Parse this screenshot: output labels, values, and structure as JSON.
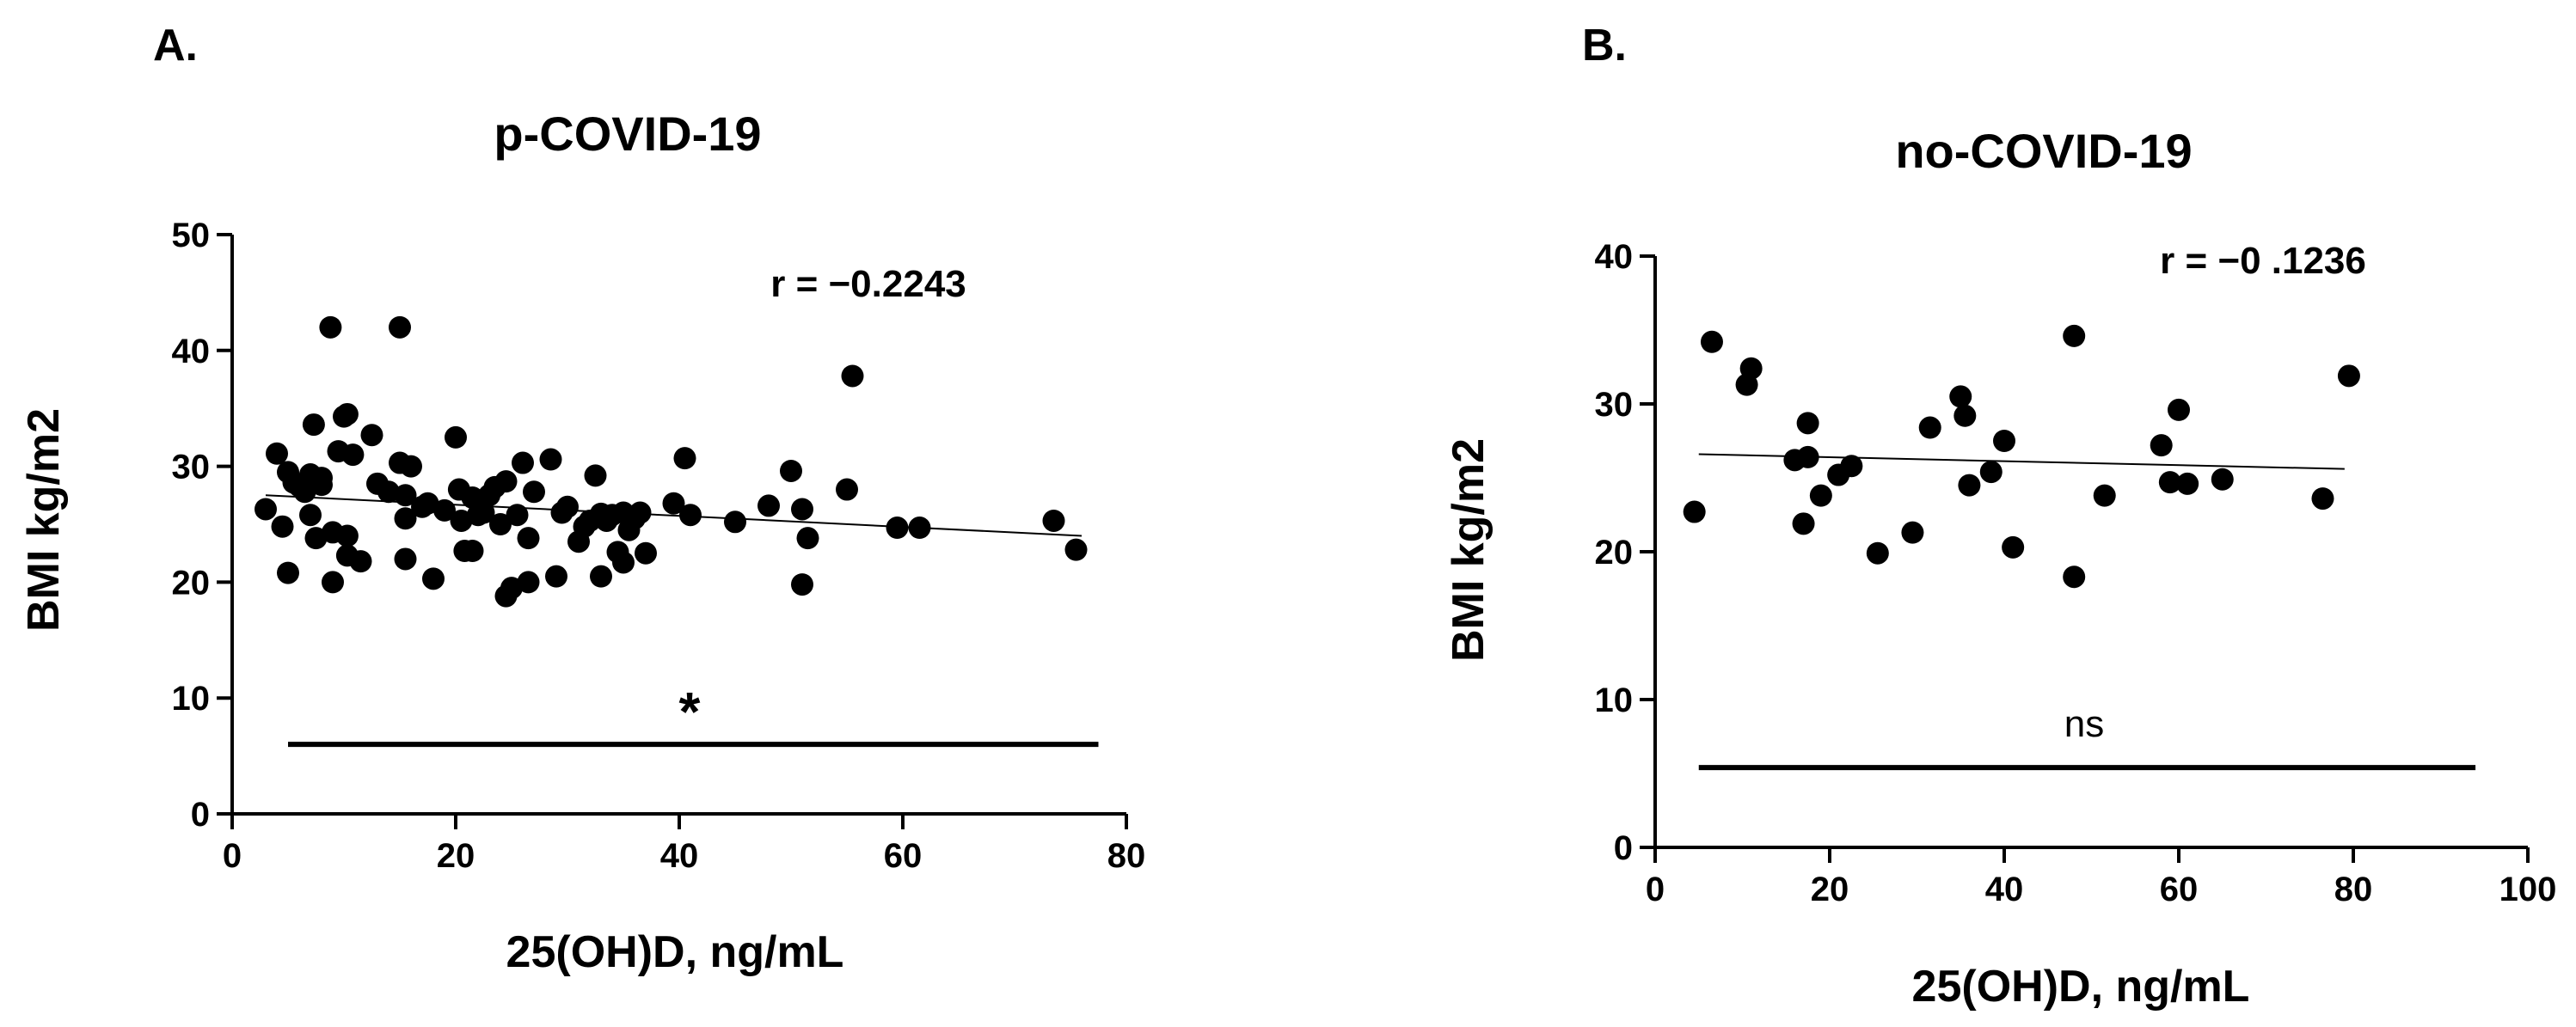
{
  "chart_data": [
    {
      "panel_label": "A.",
      "type": "scatter",
      "title": "p-COVID-19",
      "xlabel": "25(OH)D, ng/mL",
      "ylabel": "BMI kg/m2",
      "xlim": [
        0,
        80
      ],
      "ylim": [
        0,
        50
      ],
      "xticks": [
        "0",
        "20",
        "40",
        "60",
        "80"
      ],
      "yticks": [
        "0",
        "10",
        "20",
        "30",
        "40",
        "50"
      ],
      "correlation_label": "r = −0.2243",
      "significance_label": "*",
      "significance_bar": [
        5,
        77.5
      ],
      "significance_y": 6,
      "trend_line": {
        "x": [
          3,
          76
        ],
        "y": [
          27.5,
          24
        ]
      },
      "points": [
        [
          3,
          26.3
        ],
        [
          4,
          31.1
        ],
        [
          4.5,
          24.8
        ],
        [
          5,
          20.8
        ],
        [
          5,
          29.5
        ],
        [
          5.5,
          28.6
        ],
        [
          6,
          28.3
        ],
        [
          6.5,
          27.8
        ],
        [
          7,
          29.3
        ],
        [
          7,
          25.8
        ],
        [
          7.3,
          33.6
        ],
        [
          7.5,
          23.8
        ],
        [
          8,
          29
        ],
        [
          8,
          28.4
        ],
        [
          8.8,
          42
        ],
        [
          9,
          20
        ],
        [
          9,
          24.3
        ],
        [
          9.5,
          31.3
        ],
        [
          10,
          34.3
        ],
        [
          10.3,
          34.5
        ],
        [
          10.3,
          22.3
        ],
        [
          10.3,
          24
        ],
        [
          10.8,
          31
        ],
        [
          11.5,
          21.8
        ],
        [
          12.5,
          32.7
        ],
        [
          13,
          28.5
        ],
        [
          14,
          27.8
        ],
        [
          15,
          42
        ],
        [
          15,
          30.3
        ],
        [
          15.5,
          22
        ],
        [
          15.5,
          27.5
        ],
        [
          15.5,
          25.5
        ],
        [
          16,
          30
        ],
        [
          17,
          26.5
        ],
        [
          17.5,
          26.8
        ],
        [
          18,
          20.3
        ],
        [
          19,
          26.2
        ],
        [
          20,
          32.5
        ],
        [
          20.3,
          28
        ],
        [
          20.5,
          25.3
        ],
        [
          20.8,
          22.7
        ],
        [
          21.5,
          27.3
        ],
        [
          21.5,
          22.7
        ],
        [
          22,
          25.8
        ],
        [
          22.5,
          26
        ],
        [
          23,
          27.5
        ],
        [
          23.5,
          28.2
        ],
        [
          24,
          25
        ],
        [
          24.5,
          18.8
        ],
        [
          24.5,
          28.7
        ],
        [
          25,
          19.5
        ],
        [
          25.5,
          25.8
        ],
        [
          26,
          30.3
        ],
        [
          26.5,
          20
        ],
        [
          26.5,
          23.8
        ],
        [
          27,
          27.8
        ],
        [
          28.5,
          30.6
        ],
        [
          29,
          20.5
        ],
        [
          29.5,
          26
        ],
        [
          30,
          26.5
        ],
        [
          31,
          23.5
        ],
        [
          31.5,
          24.8
        ],
        [
          32,
          25.3
        ],
        [
          32.5,
          29.2
        ],
        [
          33,
          25.9
        ],
        [
          33,
          20.5
        ],
        [
          33.5,
          25.3
        ],
        [
          34,
          25.8
        ],
        [
          34.5,
          22.6
        ],
        [
          35,
          21.7
        ],
        [
          35,
          26
        ],
        [
          35.5,
          24.5
        ],
        [
          36,
          25.5
        ],
        [
          36.5,
          26
        ],
        [
          37,
          22.5
        ],
        [
          39.5,
          26.8
        ],
        [
          40.5,
          30.7
        ],
        [
          41,
          25.8
        ],
        [
          45,
          25.2
        ],
        [
          48,
          26.6
        ],
        [
          50,
          29.6
        ],
        [
          51,
          19.8
        ],
        [
          51,
          26.3
        ],
        [
          51.5,
          23.8
        ],
        [
          55,
          28
        ],
        [
          55.5,
          37.8
        ],
        [
          59.5,
          24.7
        ],
        [
          61.5,
          24.7
        ],
        [
          73.5,
          25.3
        ],
        [
          75.5,
          22.8
        ]
      ]
    },
    {
      "panel_label": "B.",
      "type": "scatter",
      "title": "no-COVID-19",
      "xlabel": "25(OH)D, ng/mL",
      "ylabel": "BMI kg/m2",
      "xlim": [
        0,
        100
      ],
      "ylim": [
        0,
        40
      ],
      "xticks": [
        "0",
        "20",
        "40",
        "60",
        "80",
        "100"
      ],
      "yticks": [
        "0",
        "10",
        "20",
        "30",
        "40"
      ],
      "correlation_label": "r = −0 .1236",
      "significance_label": "ns",
      "significance_bar": [
        5,
        94
      ],
      "significance_y": 5.4,
      "trend_line": {
        "x": [
          5,
          79
        ],
        "y": [
          26.6,
          25.6
        ]
      },
      "points": [
        [
          4.5,
          22.7
        ],
        [
          6.5,
          34.2
        ],
        [
          10.5,
          31.3
        ],
        [
          11,
          32.4
        ],
        [
          16,
          26.2
        ],
        [
          17,
          21.9
        ],
        [
          17.5,
          28.7
        ],
        [
          17.5,
          26.4
        ],
        [
          19,
          23.8
        ],
        [
          21,
          25.2
        ],
        [
          22.5,
          25.8
        ],
        [
          25.5,
          19.9
        ],
        [
          29.5,
          21.3
        ],
        [
          31.5,
          28.4
        ],
        [
          35,
          30.5
        ],
        [
          35.5,
          29.2
        ],
        [
          36,
          24.5
        ],
        [
          38.5,
          25.4
        ],
        [
          40,
          27.5
        ],
        [
          41,
          20.3
        ],
        [
          48,
          34.6
        ],
        [
          48,
          18.3
        ],
        [
          51.5,
          23.8
        ],
        [
          58,
          27.2
        ],
        [
          59,
          24.7
        ],
        [
          60,
          29.6
        ],
        [
          61,
          24.6
        ],
        [
          65,
          24.9
        ],
        [
          76.5,
          23.6
        ],
        [
          79.5,
          31.9
        ]
      ]
    }
  ]
}
